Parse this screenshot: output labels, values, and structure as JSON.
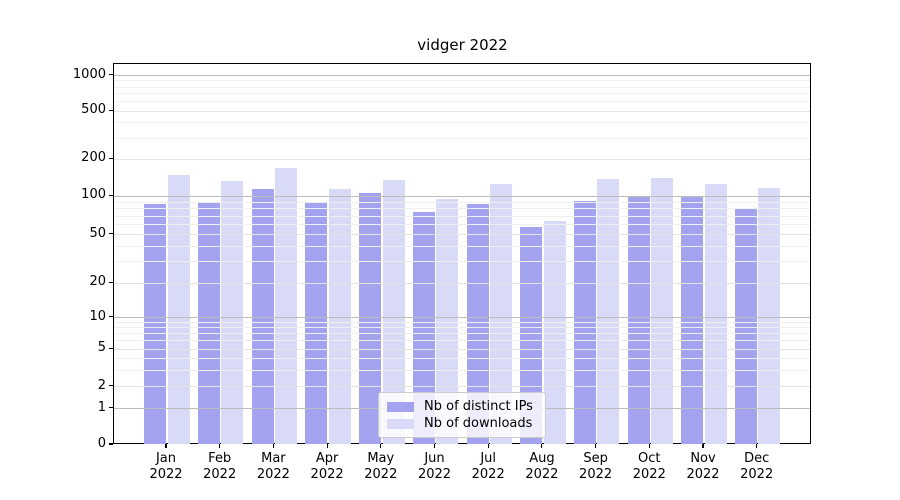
{
  "title": "vidger 2022",
  "y_axis": {
    "ticks": [
      {
        "label": "1000",
        "value": 1000
      },
      {
        "label": "500",
        "value": 500
      },
      {
        "label": "200",
        "value": 200
      },
      {
        "label": "100",
        "value": 100
      },
      {
        "label": "50",
        "value": 50
      },
      {
        "label": "20",
        "value": 20
      },
      {
        "label": "10",
        "value": 10
      },
      {
        "label": "5",
        "value": 5
      },
      {
        "label": "2",
        "value": 2
      },
      {
        "label": "1",
        "value": 1
      },
      {
        "label": "0",
        "value": 0
      }
    ]
  },
  "x_axis": {
    "months": [
      {
        "line1": "Jan",
        "line2": "2022"
      },
      {
        "line1": "Feb",
        "line2": "2022"
      },
      {
        "line1": "Mar",
        "line2": "2022"
      },
      {
        "line1": "Apr",
        "line2": "2022"
      },
      {
        "line1": "May",
        "line2": "2022"
      },
      {
        "line1": "Jun",
        "line2": "2022"
      },
      {
        "line1": "Jul",
        "line2": "2022"
      },
      {
        "line1": "Aug",
        "line2": "2022"
      },
      {
        "line1": "Sep",
        "line2": "2022"
      },
      {
        "line1": "Oct",
        "line2": "2022"
      },
      {
        "line1": "Nov",
        "line2": "2022"
      },
      {
        "line1": "Dec",
        "line2": "2022"
      }
    ]
  },
  "legend": {
    "items": [
      {
        "label": "Nb of distinct IPs",
        "color": "#a3a3ef"
      },
      {
        "label": "Nb of downloads",
        "color": "#d9d9f8"
      }
    ]
  },
  "colors": {
    "ips_bar": "#a3a3ef",
    "downloads_bar": "#d9d9f8",
    "grid_major": "#bdbdbd",
    "grid_minor_labeled": "#e4e4e4",
    "grid_minor_unlabeled": "#efefef"
  },
  "chart_data": {
    "type": "bar",
    "title": "vidger 2022",
    "categories": [
      "Jan 2022",
      "Feb 2022",
      "Mar 2022",
      "Apr 2022",
      "May 2022",
      "Jun 2022",
      "Jul 2022",
      "Aug 2022",
      "Sep 2022",
      "Oct 2022",
      "Nov 2022",
      "Dec 2022"
    ],
    "series": [
      {
        "name": "Nb of distinct IPs",
        "color": "#a3a3ef",
        "values": [
          87,
          89,
          114,
          88,
          106,
          75,
          87,
          57,
          92,
          98,
          99,
          81
        ]
      },
      {
        "name": "Nb of downloads",
        "color": "#d9d9f8",
        "values": [
          150,
          133,
          170,
          115,
          135,
          95,
          125,
          64,
          139,
          141,
          126,
          117
        ]
      }
    ],
    "xlabel": "",
    "ylabel": "",
    "yscale": "log-like with ticks 0,1,2,5,10,20,50,100,200,500,1000",
    "ylim": [
      0,
      1000
    ],
    "grid": true,
    "legend_position": "lower center"
  }
}
